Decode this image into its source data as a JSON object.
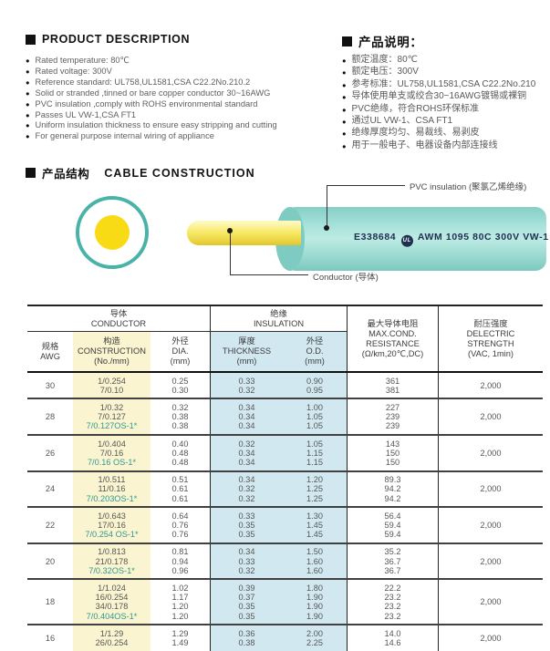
{
  "product_description": {
    "title": "PRODUCT DESCRIPTION",
    "items": [
      "Rated temperature: 80℃",
      "Rated voltage: 300V",
      "Reference standard: UL758,UL1581,CSA C22.2No.210.2",
      "Solid or stranded ,tinned or bare copper conductor 30~16AWG",
      "PVC insulation ,comply with ROHS environmental standard",
      "Passes UL VW-1,CSA FT1",
      "Uniform insulation thickness to ensure easy stripping and cutting",
      "For general purpose internal wiring of appliance"
    ]
  },
  "product_description_cn": {
    "title": "产品说明：",
    "items": [
      "额定温度：80℃",
      "额定电压：300V",
      "参考标准：UL758,UL1581,CSA C22.2No.210",
      "导体使用单支或绞合30~16AWG镀锡或裸铜",
      "PVC绝缘，符合ROHS环保标准",
      "通过UL VW-1、CSA FT1",
      "绝缘厚度均匀、易裁线、易剥皮",
      "用于一般电子、电器设备内部连接线"
    ]
  },
  "construction_section": {
    "title_cn": "产品结构",
    "title_en": "CABLE CONSTRUCTION",
    "labels": {
      "pvc": "PVC insulation (聚氯乙烯绝缘)",
      "conductor": "Conductor (导体)"
    },
    "cable_marking": {
      "prefix": "E338684",
      "ul_mark": "UL",
      "suffix": "AWM 1095 80C 300V VW-1"
    },
    "colors": {
      "insulation": "#9AD9D1",
      "conductor": "#F6E75F",
      "ring": "#4AB3A8",
      "core": "#F8DB15"
    }
  },
  "table": {
    "headers": {
      "awg_cn": "规格",
      "awg_en": "AWG",
      "conductor_group_cn": "导体",
      "conductor_group_en": "CONDUCTOR",
      "insulation_group_cn": "绝缘",
      "insulation_group_en": "INSULATION",
      "construction_cn": "构造",
      "construction_en": "CONSTRUCTION",
      "construction_unit": "(No./mm)",
      "dia_cn": "外径",
      "dia_en": "DIA.",
      "dia_unit": "(mm)",
      "thickness_cn": "厚度",
      "thickness_en": "THICKNESS",
      "thickness_unit": "(mm)",
      "od_cn": "外径",
      "od_en": "O.D.",
      "od_unit": "(mm)",
      "resistance_cn": "最大导体电阻",
      "resistance_en1": "MAX.COND.",
      "resistance_en2": "RESISTANCE",
      "resistance_unit": "(Ω/km,20℃,DC)",
      "strength_cn": "耐压强度",
      "strength_en1": "DELECTRIC",
      "strength_en2": "STRENGTH",
      "strength_unit": "(VAC, 1min)"
    },
    "groups": [
      {
        "awg": "30",
        "rows": [
          {
            "construction": "1/0.254",
            "dia": "0.25",
            "thickness": "0.33",
            "od": "0.90",
            "resistance": "361",
            "os": false
          },
          {
            "construction": "7/0.10",
            "dia": "0.30",
            "thickness": "0.32",
            "od": "0.95",
            "resistance": "381",
            "os": false
          }
        ],
        "strength": "2,000"
      },
      {
        "awg": "28",
        "rows": [
          {
            "construction": "1/0.32",
            "dia": "0.32",
            "thickness": "0.34",
            "od": "1.00",
            "resistance": "227",
            "os": false
          },
          {
            "construction": "7/0.127",
            "dia": "0.38",
            "thickness": "0.34",
            "od": "1.05",
            "resistance": "239",
            "os": false
          },
          {
            "construction": "7/0.127OS-1*",
            "dia": "0.38",
            "thickness": "0.34",
            "od": "1.05",
            "resistance": "239",
            "os": true
          }
        ],
        "strength": "2,000"
      },
      {
        "awg": "26",
        "rows": [
          {
            "construction": "1/0.404",
            "dia": "0.40",
            "thickness": "0.32",
            "od": "1.05",
            "resistance": "143",
            "os": false
          },
          {
            "construction": "7/0.16",
            "dia": "0.48",
            "thickness": "0.34",
            "od": "1.15",
            "resistance": "150",
            "os": false
          },
          {
            "construction": "7/0.16 OS-1*",
            "dia": "0.48",
            "thickness": "0.34",
            "od": "1.15",
            "resistance": "150",
            "os": true
          }
        ],
        "strength": "2,000"
      },
      {
        "awg": "24",
        "rows": [
          {
            "construction": "1/0.511",
            "dia": "0.51",
            "thickness": "0.34",
            "od": "1.20",
            "resistance": "89.3",
            "os": false
          },
          {
            "construction": "11/0.16",
            "dia": "0.61",
            "thickness": "0.32",
            "od": "1.25",
            "resistance": "94.2",
            "os": false
          },
          {
            "construction": "7/0.203OS-1*",
            "dia": "0.61",
            "thickness": "0.32",
            "od": "1.25",
            "resistance": "94.2",
            "os": true
          }
        ],
        "strength": "2,000"
      },
      {
        "awg": "22",
        "rows": [
          {
            "construction": "1/0.643",
            "dia": "0.64",
            "thickness": "0.33",
            "od": "1.30",
            "resistance": "56.4",
            "os": false
          },
          {
            "construction": "17/0.16",
            "dia": "0.76",
            "thickness": "0.35",
            "od": "1.45",
            "resistance": "59.4",
            "os": false
          },
          {
            "construction": "7/0.254 OS-1*",
            "dia": "0.76",
            "thickness": "0.35",
            "od": "1.45",
            "resistance": "59.4",
            "os": true
          }
        ],
        "strength": "2,000"
      },
      {
        "awg": "20",
        "rows": [
          {
            "construction": "1/0.813",
            "dia": "0.81",
            "thickness": "0.34",
            "od": "1.50",
            "resistance": "35.2",
            "os": false
          },
          {
            "construction": "21/0.178",
            "dia": "0.94",
            "thickness": "0.33",
            "od": "1.60",
            "resistance": "36.7",
            "os": false
          },
          {
            "construction": "7/0.32OS-1*",
            "dia": "0.96",
            "thickness": "0.32",
            "od": "1.60",
            "resistance": "36.7",
            "os": true
          }
        ],
        "strength": "2,000"
      },
      {
        "awg": "18",
        "rows": [
          {
            "construction": "1/1.024",
            "dia": "1.02",
            "thickness": "0.39",
            "od": "1.80",
            "resistance": "22.2",
            "os": false
          },
          {
            "construction": "16/0.254",
            "dia": "1.17",
            "thickness": "0.37",
            "od": "1.90",
            "resistance": "23.2",
            "os": false
          },
          {
            "construction": "34/0.178",
            "dia": "1.20",
            "thickness": "0.35",
            "od": "1.90",
            "resistance": "23.2",
            "os": false
          },
          {
            "construction": "7/0.404OS-1*",
            "dia": "1.20",
            "thickness": "0.35",
            "od": "1.90",
            "resistance": "23.2",
            "os": true
          }
        ],
        "strength": "2,000"
      },
      {
        "awg": "16",
        "rows": [
          {
            "construction": "1/1.29",
            "dia": "1.29",
            "thickness": "0.36",
            "od": "2.00",
            "resistance": "14.0",
            "os": false
          },
          {
            "construction": "26/0.254",
            "dia": "1.49",
            "thickness": "0.38",
            "od": "2.25",
            "resistance": "14.6",
            "os": false
          }
        ],
        "strength": "2,000"
      }
    ]
  }
}
